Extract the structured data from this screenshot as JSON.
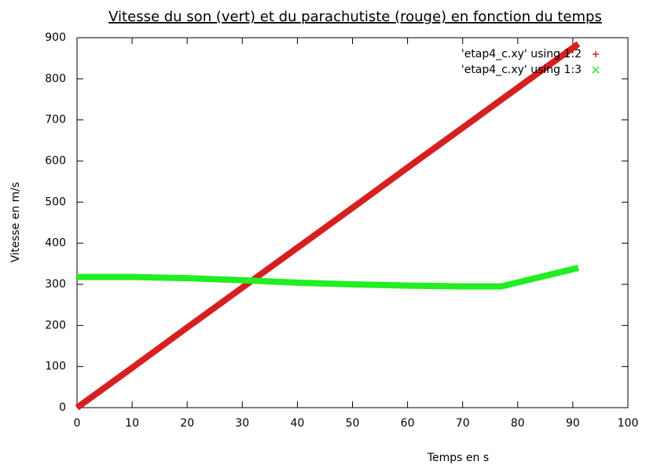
{
  "chart_data": {
    "type": "line",
    "title": "Vitesse du son (vert) et du parachutiste (rouge) en fonction du temps",
    "x_label": "Temps en s",
    "y_label": "Vitesse en m/s",
    "x": [
      0,
      10,
      20,
      30,
      40,
      50,
      60,
      70,
      77,
      91
    ],
    "series": [
      {
        "name": "'etap4_c.xy' using 1:2",
        "color": "#d62020",
        "values": [
          0,
          97,
          195,
          292,
          389,
          486,
          584,
          681,
          749,
          885
        ]
      },
      {
        "name": "'etap4_c.xy' using 1:3",
        "color": "#22ee22",
        "values": [
          318,
          318,
          315,
          310,
          304,
          300,
          297,
          295,
          295,
          340
        ]
      }
    ],
    "xlim": [
      0,
      100
    ],
    "xticks": [
      0,
      10,
      20,
      30,
      40,
      50,
      60,
      70,
      80,
      90,
      100
    ],
    "ylim": [
      0,
      900
    ],
    "yticks": [
      0,
      100,
      200,
      300,
      400,
      500,
      600,
      700,
      800,
      900
    ],
    "legend": "top-right",
    "grid": false
  }
}
